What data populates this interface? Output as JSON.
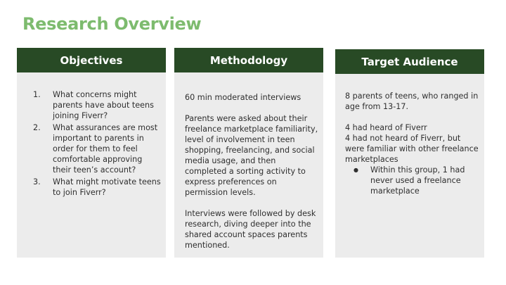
{
  "slide": {
    "title": "Research Overview"
  },
  "objectives": {
    "heading": "Objectives",
    "items": [
      {
        "num": "1.",
        "text": "What concerns might parents have about teens joining Fiverr?"
      },
      {
        "num": "2.",
        "text": "What assurances are most important to parents in order for them to feel comfortable approving their teen’s account?"
      },
      {
        "num": "3.",
        "text": "What might motivate teens to join Fiverr?"
      }
    ]
  },
  "methodology": {
    "heading": "Methodology",
    "p1": "60 min moderated interviews",
    "p2": "Parents were asked about their freelance marketplace familiarity, level of involvement in teen shopping, freelancing, and social media usage, and then completed a sorting activity to express preferences on permission levels.",
    "p3": "Interviews were followed by desk research, diving deeper into the shared account spaces parents mentioned."
  },
  "audience": {
    "heading": "Target Audience",
    "p1": "8 parents of teens, who ranged in age from 13-17.",
    "p2": "4 had heard of Fiverr",
    "p3": "4 had not heard of Fiverr, but were familiar with other freelance marketplaces",
    "bullet_symbol": "●",
    "bullet": "Within this group, 1 had never used a freelance marketplace"
  },
  "colors": {
    "title": "#7dbb6e",
    "header_bg": "#284a25",
    "card_bg": "#ececec"
  }
}
